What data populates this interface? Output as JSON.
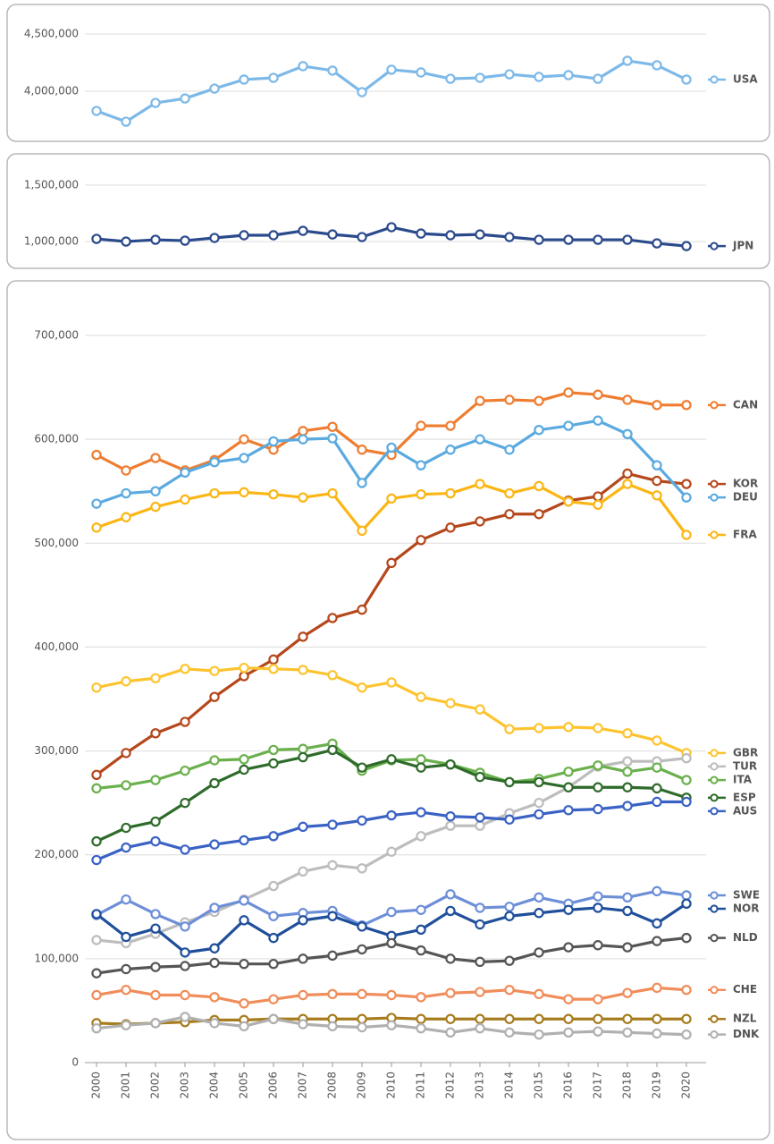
{
  "chart_data": [
    {
      "type": "line",
      "x": [
        2000,
        2001,
        2002,
        2003,
        2004,
        2005,
        2006,
        2007,
        2008,
        2009,
        2010,
        2011,
        2012,
        2013,
        2014,
        2015,
        2016,
        2017,
        2018,
        2019,
        2020
      ],
      "ylim": [
        3650000,
        4650000
      ],
      "yticks": [
        {
          "value": 4000000,
          "label": "4,000,000"
        },
        {
          "value": 4500000,
          "label": "4,500,000"
        }
      ],
      "grid": true,
      "series": [
        {
          "name": "USA",
          "color": "#7db9e8",
          "values": [
            3828000,
            3734000,
            3898000,
            3937000,
            4023000,
            4102000,
            4117000,
            4219000,
            4180000,
            3992000,
            4188000,
            4164000,
            4109000,
            4117000,
            4148000,
            4125000,
            4141000,
            4109000,
            4266000,
            4227000,
            4102000
          ]
        }
      ]
    },
    {
      "type": "line",
      "x": [
        2000,
        2001,
        2002,
        2003,
        2004,
        2005,
        2006,
        2007,
        2008,
        2009,
        2010,
        2011,
        2012,
        2013,
        2014,
        2015,
        2016,
        2017,
        2018,
        2019,
        2020
      ],
      "ylim": [
        850000,
        1650000
      ],
      "yticks": [
        {
          "value": 1000000,
          "label": "1,000,000"
        },
        {
          "value": 1500000,
          "label": "1,500,000"
        }
      ],
      "grid": true,
      "series": [
        {
          "name": "JPN",
          "color": "#2b4a8c",
          "values": [
            1024000,
            1000000,
            1016000,
            1008000,
            1032000,
            1056000,
            1056000,
            1095000,
            1063000,
            1040000,
            1127000,
            1071000,
            1056000,
            1063000,
            1040000,
            1016000,
            1016000,
            1016000,
            1016000,
            984000,
            960000
          ]
        }
      ]
    },
    {
      "type": "line",
      "x": [
        2000,
        2001,
        2002,
        2003,
        2004,
        2005,
        2006,
        2007,
        2008,
        2009,
        2010,
        2011,
        2012,
        2013,
        2014,
        2015,
        2016,
        2017,
        2018,
        2019,
        2020
      ],
      "ylim": [
        0,
        700000
      ],
      "yticks": [
        0,
        {
          "value": 100000,
          "label": "100,000"
        },
        {
          "value": 200000,
          "label": "200,000"
        },
        {
          "value": 300000,
          "label": "300,000"
        },
        {
          "value": 400000,
          "label": "400,000"
        },
        {
          "value": 500000,
          "label": "500,000"
        },
        {
          "value": 600000,
          "label": "600,000"
        },
        {
          "value": 700000,
          "label": "700,000"
        }
      ],
      "grid": true,
      "series": [
        {
          "name": "CAN",
          "color": "#ee7d31",
          "values": [
            585000,
            570000,
            582000,
            570000,
            580000,
            600000,
            590000,
            608000,
            612000,
            590000,
            585000,
            613000,
            613000,
            637000,
            638000,
            637000,
            645000,
            643000,
            638000,
            633000,
            633000
          ]
        },
        {
          "name": "KOR",
          "color": "#b5471b",
          "values": [
            277000,
            298000,
            317000,
            328000,
            352000,
            372000,
            388000,
            410000,
            428000,
            436000,
            481000,
            503000,
            515000,
            521000,
            528000,
            528000,
            541000,
            545000,
            567000,
            560000,
            557000
          ]
        },
        {
          "name": "DEU",
          "color": "#5aaae0",
          "values": [
            538000,
            548000,
            550000,
            568000,
            578000,
            582000,
            598000,
            600000,
            601000,
            558000,
            592000,
            575000,
            590000,
            600000,
            590000,
            609000,
            613000,
            618000,
            605000,
            575000,
            544000
          ]
        },
        {
          "name": "FRA",
          "color": "#fbb615",
          "values": [
            515000,
            525000,
            535000,
            542000,
            548000,
            549000,
            547000,
            544000,
            548000,
            512000,
            543000,
            547000,
            548000,
            557000,
            548000,
            555000,
            540000,
            537000,
            557000,
            546000,
            508000
          ]
        },
        {
          "name": "GBR",
          "color": "#fdc42f",
          "values": [
            361000,
            367000,
            370000,
            379000,
            377000,
            380000,
            379000,
            378000,
            373000,
            361000,
            366000,
            352000,
            346000,
            340000,
            321000,
            322000,
            323000,
            322000,
            317000,
            310000,
            298000
          ]
        },
        {
          "name": "TUR",
          "color": "#bdbdbd",
          "values": [
            118000,
            115000,
            124000,
            135000,
            145000,
            157000,
            170000,
            184000,
            190000,
            187000,
            203000,
            218000,
            228000,
            228000,
            240000,
            250000,
            265000,
            285000,
            290000,
            290000,
            293000
          ]
        },
        {
          "name": "ITA",
          "color": "#6ab04c",
          "values": [
            264000,
            267000,
            272000,
            281000,
            291000,
            292000,
            301000,
            302000,
            307000,
            281000,
            291000,
            292000,
            287000,
            279000,
            270000,
            273000,
            280000,
            286000,
            280000,
            284000,
            272000
          ]
        },
        {
          "name": "ESP",
          "color": "#2e6b2a",
          "values": [
            213000,
            226000,
            232000,
            250000,
            269000,
            282000,
            288000,
            294000,
            301000,
            284000,
            292000,
            284000,
            287000,
            275000,
            270000,
            270000,
            265000,
            265000,
            265000,
            264000,
            255000
          ]
        },
        {
          "name": "AUS",
          "color": "#3a62c4",
          "values": [
            195000,
            207000,
            213000,
            205000,
            210000,
            214000,
            218000,
            227000,
            229000,
            233000,
            238000,
            241000,
            237000,
            236000,
            234000,
            239000,
            243000,
            244000,
            247000,
            251000,
            251000
          ]
        },
        {
          "name": "SWE",
          "color": "#6d8fd8",
          "values": [
            142000,
            157000,
            143000,
            131000,
            149000,
            156000,
            141000,
            144000,
            146000,
            132000,
            145000,
            147000,
            162000,
            149000,
            150000,
            159000,
            153000,
            160000,
            159000,
            165000,
            161000
          ]
        },
        {
          "name": "NOR",
          "color": "#1f4f9a",
          "values": [
            143000,
            121000,
            129000,
            106000,
            110000,
            137000,
            120000,
            137000,
            141000,
            131000,
            122000,
            128000,
            146000,
            133000,
            141000,
            144000,
            147000,
            149000,
            146000,
            134000,
            153000
          ]
        },
        {
          "name": "NLD",
          "color": "#555555",
          "values": [
            86000,
            90000,
            92000,
            93000,
            96000,
            95000,
            95000,
            100000,
            103000,
            109000,
            115000,
            108000,
            100000,
            97000,
            98000,
            106000,
            111000,
            113000,
            111000,
            117000,
            120000
          ]
        },
        {
          "name": "CHE",
          "color": "#f08d5a",
          "values": [
            65000,
            70000,
            65000,
            65000,
            63000,
            57000,
            61000,
            65000,
            66000,
            66000,
            65000,
            63000,
            67000,
            68000,
            70000,
            66000,
            61000,
            61000,
            67000,
            72000,
            70000
          ]
        },
        {
          "name": "NZL",
          "color": "#a67c1e",
          "values": [
            38000,
            37000,
            38000,
            39000,
            41000,
            41000,
            42000,
            42000,
            42000,
            42000,
            43000,
            42000,
            42000,
            42000,
            42000,
            42000,
            42000,
            42000,
            42000,
            42000,
            42000
          ]
        },
        {
          "name": "DNK",
          "color": "#b0b0b0",
          "values": [
            33000,
            36000,
            38000,
            44000,
            38000,
            35000,
            42000,
            37000,
            35000,
            34000,
            36000,
            33000,
            29000,
            33000,
            29000,
            27000,
            29000,
            30000,
            29000,
            28000,
            27000
          ]
        }
      ]
    }
  ]
}
